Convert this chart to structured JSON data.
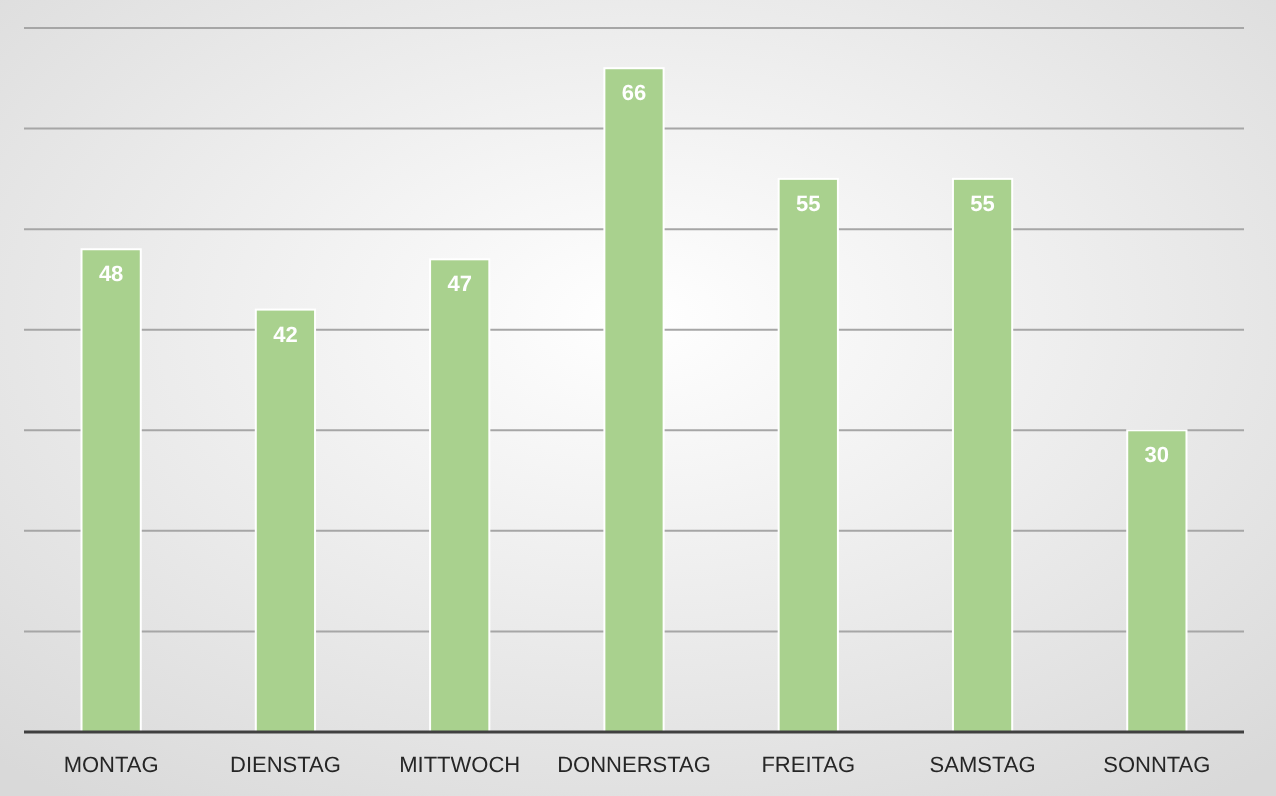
{
  "chart_data": {
    "type": "bar",
    "categories": [
      "MONTAG",
      "DIENSTAG",
      "MITTWOCH",
      "DONNERSTAG",
      "FREITAG",
      "SAMSTAG",
      "SONNTAG"
    ],
    "values": [
      48,
      42,
      47,
      66,
      55,
      55,
      30
    ],
    "color": "#a9d18e",
    "ylim": [
      0,
      70
    ],
    "yticks": [
      {
        "value": 0,
        "label": null
      },
      {
        "value": 10,
        "label": null
      },
      {
        "value": 20,
        "label": null
      },
      {
        "value": 30,
        "label": null
      },
      {
        "value": 40,
        "label": null
      },
      {
        "value": 50,
        "label": null
      },
      {
        "value": 60,
        "label": null
      },
      {
        "value": 70,
        "label": null
      }
    ],
    "grid": "y",
    "tick_labels": "x",
    "data_labels": true
  }
}
